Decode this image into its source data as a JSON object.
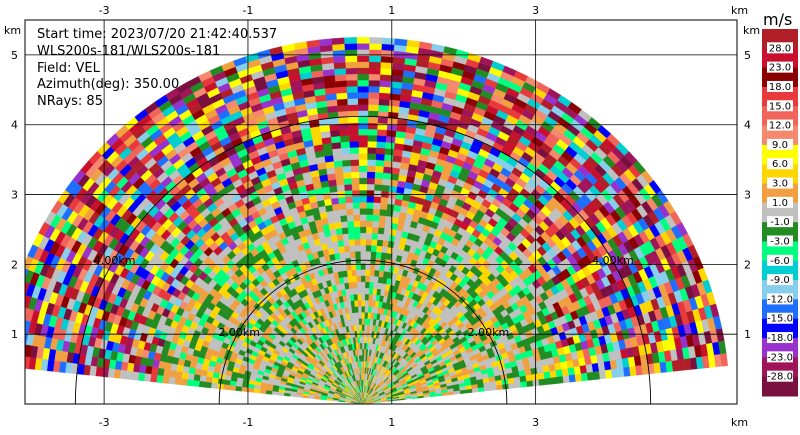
{
  "info": {
    "start_time": "Start time: 2023/07/20 21:42:40.537",
    "station": "WLS200s-181/WLS200s-181",
    "field": "Field: VEL",
    "azimuth": "Azimuth(deg): 350.00",
    "nrays": "NRays: 85"
  },
  "axis_unit": "km",
  "colorbar": {
    "title": "m/s",
    "levels": [
      "28.0",
      "23.0",
      "18.0",
      "15.0",
      "12.0",
      "9.0",
      "6.0",
      "3.0",
      "1.0",
      "-1.0",
      "-3.0",
      "-6.0",
      "-9.0",
      "-12.0",
      "-15.0",
      "-18.0",
      "-23.0",
      "-28.0"
    ],
    "bottom_label": "-28.0",
    "colors": [
      "#b01e28",
      "#c8102e",
      "#8b0000",
      "#e8393c",
      "#f0645a",
      "#f5896e",
      "#ffff00",
      "#ffd700",
      "#f0a040",
      "#c0c0c0",
      "#228b22",
      "#00ff7f",
      "#00ced1",
      "#87ceeb",
      "#1e6fff",
      "#0000ff",
      "#9932cc",
      "#a0155a",
      "#7a1040"
    ]
  },
  "chart_data": {
    "type": "heatmap",
    "title": "",
    "xlabel": "km",
    "ylabel": "km",
    "xlim": [
      -4.1,
      5.8
    ],
    "ylim": [
      0,
      5.5
    ],
    "xticks": [
      -3,
      -1,
      1,
      3
    ],
    "yticks": [
      1,
      2,
      3,
      4,
      5
    ],
    "radar_origin": [
      0.6,
      0
    ],
    "max_range_km": 5.1,
    "elevation_angle_deg": 6,
    "range_rings": [
      {
        "label": "2.00km",
        "radius": 2.0
      },
      {
        "label": "4.00km",
        "radius": 4.0
      }
    ],
    "field": "VEL",
    "units": "m/s"
  }
}
